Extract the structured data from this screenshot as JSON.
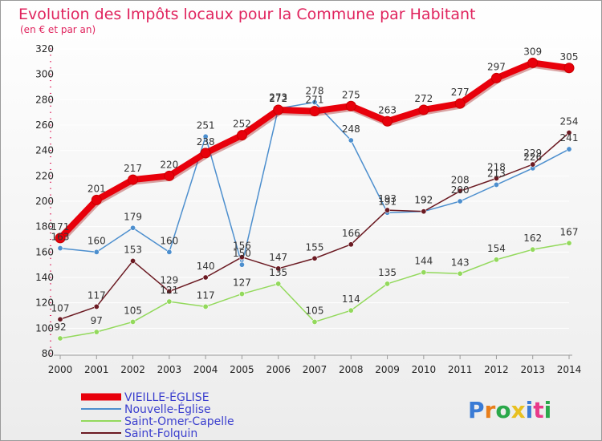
{
  "chart_data": {
    "type": "line",
    "title": "Evolution des Impôts locaux pour la Commune par Habitant",
    "subtitle": "(en € et par an)",
    "xlabel": "",
    "ylabel": "",
    "ylim": [
      80,
      320
    ],
    "y_ticks": [
      80,
      100,
      120,
      140,
      160,
      180,
      200,
      220,
      240,
      260,
      280,
      300,
      320
    ],
    "x": [
      "2000",
      "2001",
      "2002",
      "2003",
      "2004",
      "2005",
      "2006",
      "2007",
      "2008",
      "2009",
      "2010",
      "2011",
      "2012",
      "2013",
      "2014"
    ],
    "legend_position": "bottom-left",
    "series": [
      {
        "name": "VIEILLE-ÉGLISE",
        "color": "#e8000b",
        "values": [
          171,
          201,
          217,
          220,
          238,
          252,
          272,
          271,
          275,
          263,
          272,
          277,
          297,
          309,
          305
        ]
      },
      {
        "name": "Nouvelle-Église",
        "color": "#4d8fce",
        "values": [
          163,
          160,
          179,
          160,
          251,
          150,
          273,
          278,
          248,
          191,
          192,
          200,
          213,
          226,
          241
        ]
      },
      {
        "name": "Saint-Omer-Capelle",
        "color": "#93d95c",
        "values": [
          92,
          97,
          105,
          121,
          117,
          127,
          135,
          105,
          114,
          135,
          144,
          143,
          154,
          162,
          167
        ]
      },
      {
        "name": "Saint-Folquin",
        "color": "#6b1a22",
        "values": [
          107,
          117,
          153,
          129,
          140,
          156,
          147,
          155,
          166,
          193,
          192,
          208,
          218,
          229,
          254
        ]
      }
    ]
  },
  "brand": {
    "text": "Proxiti",
    "colors": [
      "#3a7bd5",
      "#e87e1a",
      "#2aa84a",
      "#e8c020",
      "#3a7bd5",
      "#e83a8a",
      "#2aa84a"
    ]
  }
}
